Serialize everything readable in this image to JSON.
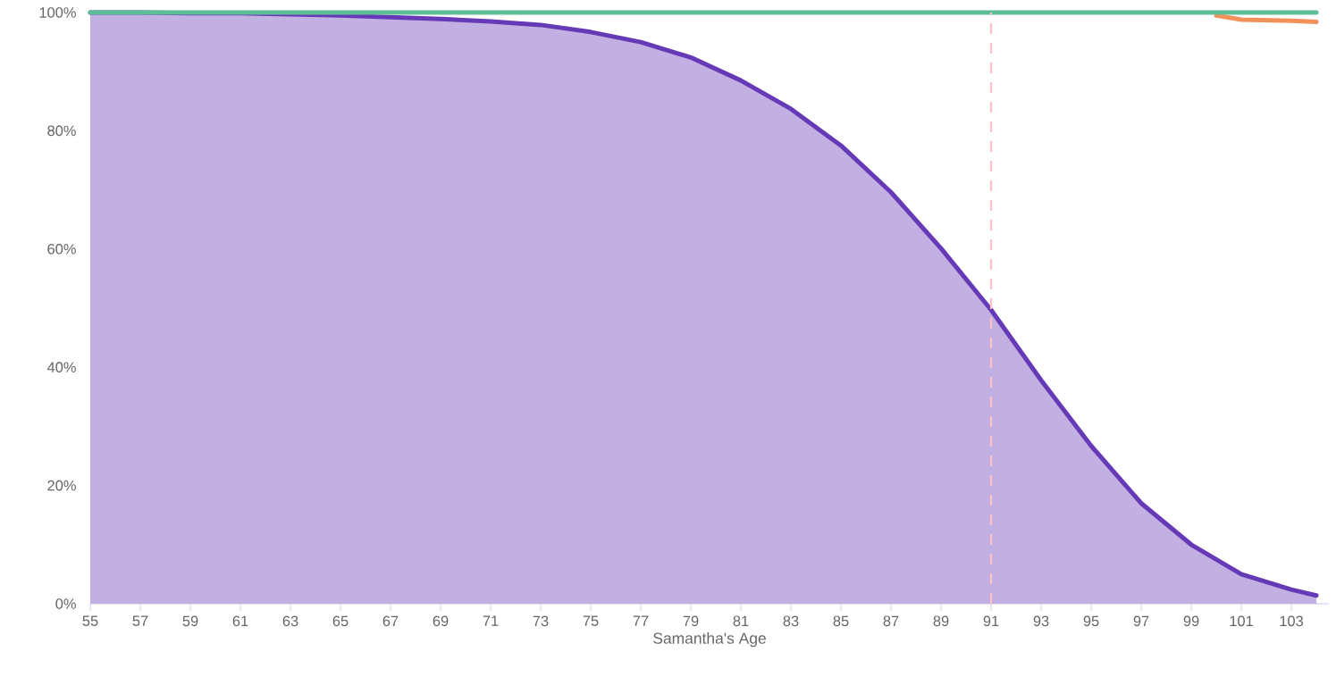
{
  "chart_data": {
    "type": "line",
    "xlabel": "Samantha's Age",
    "xlim": [
      55,
      104.5
    ],
    "ylim": [
      0,
      100
    ],
    "xticks": [
      55,
      57,
      59,
      61,
      63,
      65,
      67,
      69,
      71,
      73,
      75,
      77,
      79,
      81,
      83,
      85,
      87,
      89,
      91,
      93,
      95,
      97,
      99,
      101,
      103
    ],
    "yticks": [
      {
        "value": 0,
        "label": "0%"
      },
      {
        "value": 20,
        "label": "20%"
      },
      {
        "value": 40,
        "label": "40%"
      },
      {
        "value": 60,
        "label": "60%"
      },
      {
        "value": 80,
        "label": "80%"
      },
      {
        "value": 100,
        "label": "100%"
      }
    ],
    "grid": false,
    "legend": false,
    "marker": "none",
    "line_style": "solid",
    "series": [
      {
        "type": "area",
        "color": "#6639b7",
        "x": [
          55,
          57,
          59,
          61,
          63,
          65,
          67,
          69,
          71,
          73,
          75,
          77,
          79,
          81,
          83,
          85,
          87,
          89,
          91,
          93,
          95,
          97,
          99,
          101,
          103,
          104
        ],
        "values": [
          100,
          100,
          99.9,
          99.9,
          99.7,
          99.5,
          99.2,
          98.9,
          98.5,
          97.9,
          96.7,
          95,
          92.4,
          88.5,
          83.7,
          77.5,
          69.6,
          60.1,
          49.7,
          37.8,
          26.7,
          17,
          10,
          5,
          2.4,
          1.4
        ]
      },
      {
        "color": "#f4915a",
        "x": [
          100,
          101,
          103,
          104
        ],
        "values": [
          99.5,
          98.8,
          98.6,
          98.4
        ]
      },
      {
        "color": "#5dbf96",
        "x": [
          55,
          104
        ],
        "values": [
          100,
          100
        ]
      }
    ],
    "ref_lines": [
      {
        "axis": "x",
        "value": 91,
        "color": "#ffc0cb",
        "line_style": "dashed"
      }
    ]
  }
}
